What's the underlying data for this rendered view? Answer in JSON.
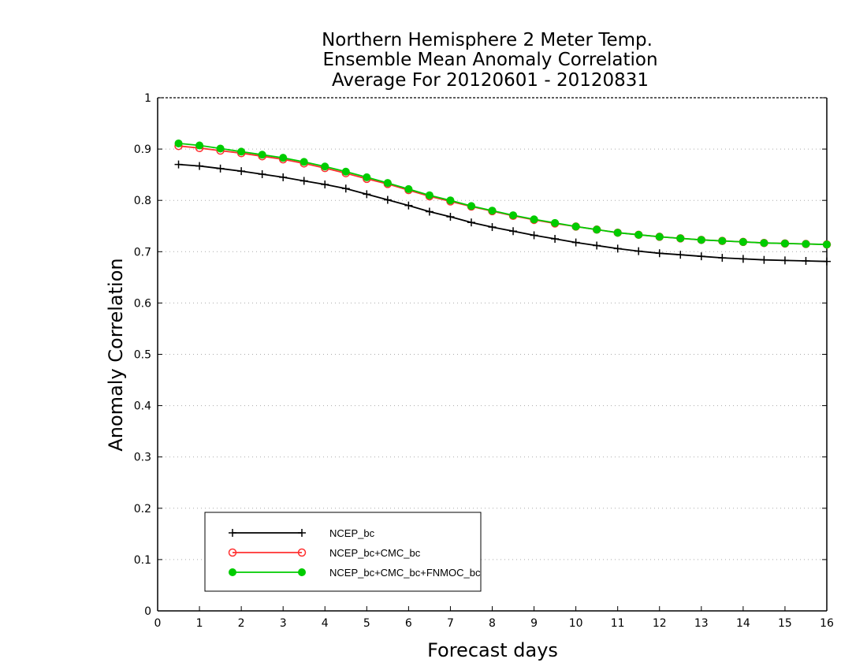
{
  "chart_data": {
    "type": "line",
    "title_lines": [
      "Northern Hemisphere 2 Meter Temp.",
      "Ensemble Mean Anomaly Correlation",
      "Average For 20120601 - 20120831"
    ],
    "xlabel": "Forecast days",
    "ylabel": "Anomaly Correlation",
    "xlim": [
      0,
      16
    ],
    "ylim": [
      0,
      1
    ],
    "x_ticks": [
      "0",
      "1",
      "2",
      "3",
      "4",
      "5",
      "6",
      "7",
      "8",
      "9",
      "10",
      "11",
      "12",
      "13",
      "14",
      "15",
      "16"
    ],
    "y_ticks": [
      "0",
      "0.1",
      "0.2",
      "0.3",
      "0.4",
      "0.5",
      "0.6",
      "0.7",
      "0.8",
      "0.9",
      "1"
    ],
    "grid": "dotted horizontal",
    "legend_position": "bottom-left",
    "x": [
      0.5,
      1,
      1.5,
      2,
      2.5,
      3,
      3.5,
      4,
      4.5,
      5,
      5.5,
      6,
      6.5,
      7,
      7.5,
      8,
      8.5,
      9,
      9.5,
      10,
      10.5,
      11,
      11.5,
      12,
      12.5,
      13,
      13.5,
      14,
      14.5,
      15,
      15.5,
      16
    ],
    "series": [
      {
        "name": "NCEP_bc",
        "color": "#000000",
        "marker": "plus",
        "values": [
          0.87,
          0.867,
          0.862,
          0.857,
          0.851,
          0.845,
          0.838,
          0.831,
          0.823,
          0.812,
          0.801,
          0.79,
          0.778,
          0.768,
          0.757,
          0.748,
          0.74,
          0.732,
          0.725,
          0.718,
          0.712,
          0.706,
          0.701,
          0.697,
          0.694,
          0.691,
          0.688,
          0.686,
          0.684,
          0.683,
          0.682,
          0.681
        ]
      },
      {
        "name": "NCEP_bc+CMC_bc",
        "color": "#ff3030",
        "marker": "open-circle",
        "values": [
          0.906,
          0.902,
          0.897,
          0.892,
          0.886,
          0.88,
          0.872,
          0.863,
          0.853,
          0.842,
          0.832,
          0.82,
          0.808,
          0.798,
          0.788,
          0.779,
          0.77,
          0.762,
          0.755,
          0.749,
          0.743,
          0.737,
          0.733,
          0.729,
          0.726,
          0.723,
          0.721,
          0.719,
          0.717,
          0.716,
          0.715,
          0.714
        ]
      },
      {
        "name": "NCEP_bc+CMC_bc+FNMOC_bc",
        "color": "#00cc00",
        "marker": "filled-circle",
        "values": [
          0.911,
          0.907,
          0.901,
          0.895,
          0.889,
          0.883,
          0.875,
          0.866,
          0.856,
          0.845,
          0.834,
          0.822,
          0.81,
          0.8,
          0.789,
          0.78,
          0.771,
          0.763,
          0.756,
          0.749,
          0.743,
          0.737,
          0.733,
          0.729,
          0.726,
          0.723,
          0.721,
          0.719,
          0.717,
          0.716,
          0.715,
          0.714
        ]
      }
    ]
  }
}
